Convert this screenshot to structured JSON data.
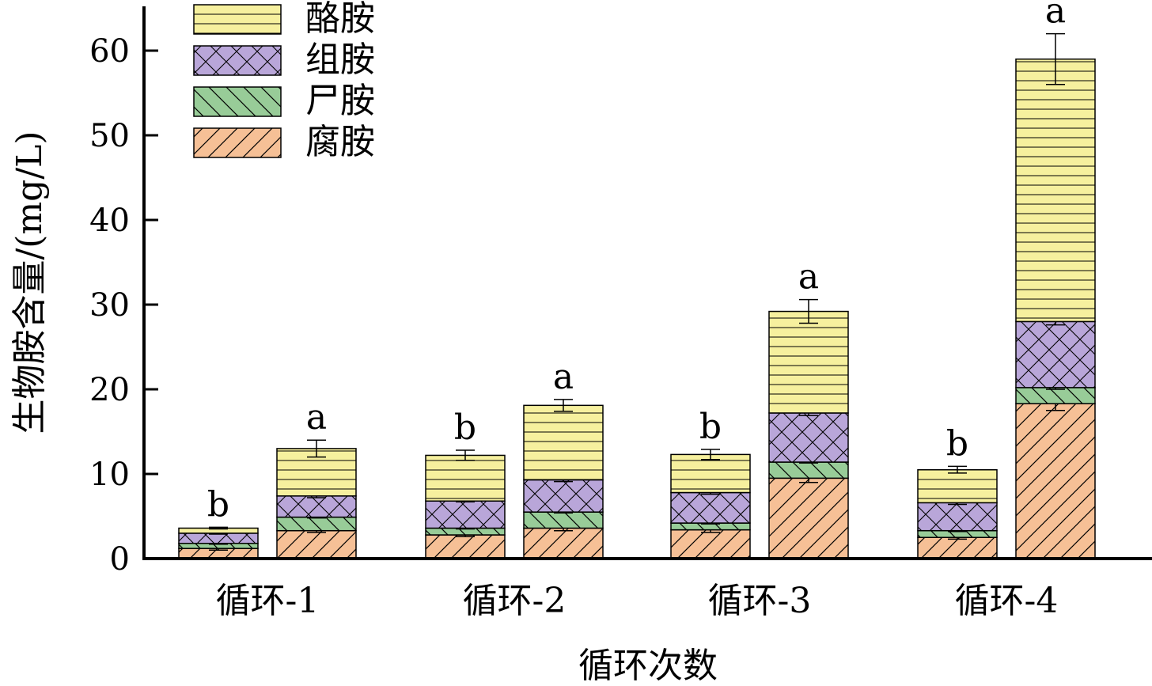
{
  "chart_data": {
    "type": "stacked-bar",
    "xlabel": "循环次数",
    "ylabel": "生物胺含量/(mg/L)",
    "ylim": [
      0,
      65
    ],
    "yticks": [
      0,
      10,
      20,
      30,
      40,
      50,
      60
    ],
    "groups": [
      "循环-1",
      "循环-2",
      "循环-3",
      "循环-4"
    ],
    "bars_per_group": 2,
    "series": [
      {
        "name": "腐胺",
        "color": "#f6c096",
        "pattern": "diag-forward",
        "values": [
          [
            1.2,
            3.3
          ],
          [
            2.8,
            3.6
          ],
          [
            3.4,
            9.5
          ],
          [
            2.5,
            18.3
          ]
        ],
        "errors": [
          [
            0.2,
            0.2
          ],
          [
            0.2,
            0.3
          ],
          [
            0.3,
            0.5
          ],
          [
            0.2,
            0.8
          ]
        ]
      },
      {
        "name": "尸胺",
        "color": "#98cc98",
        "pattern": "diag-back",
        "values": [
          [
            0.6,
            1.6
          ],
          [
            0.8,
            1.9
          ],
          [
            0.8,
            1.9
          ],
          [
            0.8,
            1.9
          ]
        ],
        "errors": [
          [
            0.1,
            0.1
          ],
          [
            0.1,
            0.1
          ],
          [
            0.1,
            0.1
          ],
          [
            0.1,
            0.2
          ]
        ]
      },
      {
        "name": "组胺",
        "color": "#b9a6d9",
        "pattern": "crosshatch",
        "values": [
          [
            1.2,
            2.5
          ],
          [
            3.2,
            3.8
          ],
          [
            3.6,
            5.8
          ],
          [
            3.3,
            7.8
          ]
        ],
        "errors": [
          [
            0.1,
            0.2
          ],
          [
            0.1,
            0.2
          ],
          [
            0.2,
            0.3
          ],
          [
            0.2,
            0.4
          ]
        ]
      },
      {
        "name": "酪胺",
        "color": "#f6f09e",
        "pattern": "horizontal",
        "values": [
          [
            0.6,
            5.6
          ],
          [
            5.4,
            8.8
          ],
          [
            4.5,
            12.0
          ],
          [
            3.9,
            31.0
          ]
        ],
        "errors": [
          [
            0.1,
            1.0
          ],
          [
            0.6,
            0.7
          ],
          [
            0.6,
            1.4
          ],
          [
            0.4,
            3.0
          ]
        ]
      }
    ],
    "significance": [
      [
        "b",
        "a"
      ],
      [
        "b",
        "a"
      ],
      [
        "b",
        "a"
      ],
      [
        "b",
        "a"
      ]
    ],
    "legend_position": "top-left",
    "grid": false
  }
}
